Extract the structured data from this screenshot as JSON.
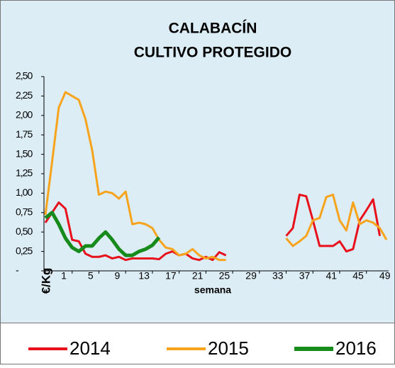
{
  "chart_data": {
    "type": "line",
    "title": "CALABACÍN",
    "subtitle": "CULTIVO PROTEGIDO",
    "y_label": "€/Kg",
    "x_label": "semana",
    "x": [
      1,
      2,
      3,
      4,
      5,
      6,
      7,
      8,
      9,
      10,
      11,
      12,
      13,
      14,
      15,
      16,
      17,
      18,
      19,
      20,
      21,
      22,
      23,
      24,
      25,
      26,
      27,
      28,
      29,
      30,
      31,
      32,
      33,
      34,
      35,
      36,
      37,
      38,
      39,
      40,
      41,
      42,
      43,
      44,
      45,
      46,
      47,
      48,
      49,
      50,
      51,
      52
    ],
    "xlim": [
      1,
      52
    ],
    "xticks": [
      1,
      5,
      9,
      13,
      17,
      21,
      25,
      29,
      33,
      37,
      41,
      45,
      49
    ],
    "ylim": [
      0,
      2.5
    ],
    "yticks": [
      {
        "value": 0,
        "label": "-"
      },
      {
        "value": 0.25,
        "label": "0,25"
      },
      {
        "value": 0.5,
        "label": "0,50"
      },
      {
        "value": 0.75,
        "label": "0,75"
      },
      {
        "value": 1,
        "label": "1,00"
      },
      {
        "value": 1.25,
        "label": "1,25"
      },
      {
        "value": 1.5,
        "label": "1,50"
      },
      {
        "value": 1.75,
        "label": "1,75"
      },
      {
        "value": 2,
        "label": "2,00"
      },
      {
        "value": 2.25,
        "label": "2,25"
      },
      {
        "value": 2.5,
        "label": "2,50"
      }
    ],
    "series": [
      {
        "name": "2014",
        "color": "#e8101a",
        "width": 3,
        "values": [
          0.62,
          0.75,
          0.88,
          0.8,
          0.4,
          0.38,
          0.22,
          0.18,
          0.18,
          0.2,
          0.16,
          0.18,
          0.14,
          0.16,
          0.16,
          0.16,
          0.16,
          0.15,
          0.22,
          0.25,
          0.2,
          0.22,
          0.16,
          0.14,
          0.18,
          0.14,
          0.24,
          0.2,
          null,
          null,
          null,
          null,
          null,
          null,
          null,
          null,
          0.45,
          0.55,
          0.98,
          0.96,
          0.65,
          0.32,
          0.32,
          0.32,
          0.38,
          0.25,
          0.28,
          0.65,
          0.78,
          0.92,
          0.45,
          null
        ]
      },
      {
        "name": "2015",
        "color": "#f7a41c",
        "width": 3,
        "values": [
          0.72,
          1.4,
          2.1,
          2.3,
          2.25,
          2.2,
          1.95,
          1.55,
          0.98,
          1.02,
          1.0,
          0.93,
          1.02,
          0.6,
          0.62,
          0.6,
          0.55,
          0.4,
          0.3,
          0.28,
          0.2,
          0.22,
          0.28,
          0.2,
          0.16,
          0.18,
          0.14,
          0.14,
          null,
          null,
          null,
          null,
          null,
          null,
          null,
          null,
          0.42,
          0.32,
          0.38,
          0.45,
          0.65,
          0.68,
          0.95,
          0.98,
          0.65,
          0.52,
          0.88,
          0.6,
          0.65,
          0.62,
          0.55,
          0.4
        ]
      },
      {
        "name": "2016",
        "color": "#178a1c",
        "width": 5,
        "values": [
          0.68,
          0.75,
          0.6,
          0.42,
          0.3,
          0.25,
          0.32,
          0.32,
          0.42,
          0.5,
          0.4,
          0.28,
          0.2,
          0.2,
          0.25,
          0.28,
          0.33,
          0.43,
          null,
          null,
          null,
          null,
          null,
          null,
          null,
          null,
          null,
          null,
          null,
          null,
          null,
          null,
          null,
          null,
          null,
          null,
          null,
          null,
          null,
          null,
          null,
          null,
          null,
          null,
          null,
          null,
          null,
          null,
          null,
          null,
          null,
          null
        ]
      }
    ]
  }
}
